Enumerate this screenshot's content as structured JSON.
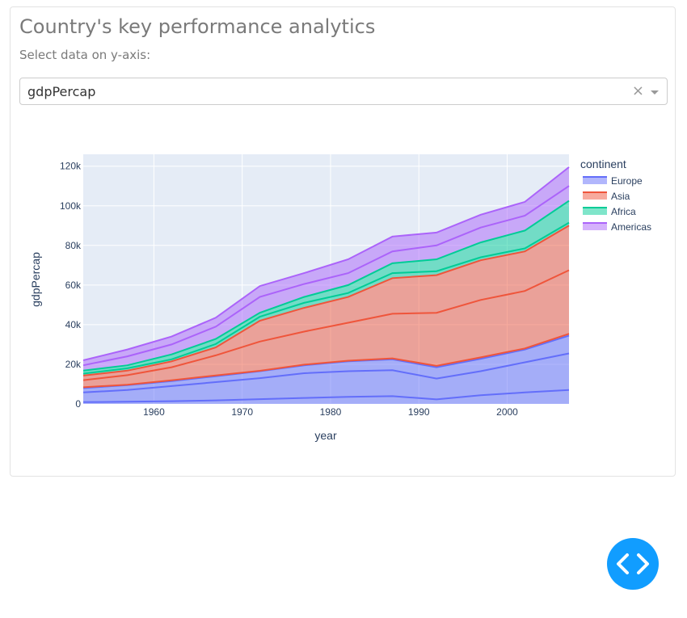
{
  "header": {
    "title": "Country's key performance analytics",
    "subtitle": "Select data on y-axis:"
  },
  "dropdown": {
    "value": "gdpPercap",
    "clear_symbol": "×"
  },
  "colors": {
    "europe": "#636efa",
    "asia": "#ef553b",
    "africa": "#00cc96",
    "americas": "#ab63fa",
    "plot_bg": "#e5ecf6",
    "fab": "#119dff"
  },
  "chart_data": {
    "type": "area",
    "xlabel": "year",
    "ylabel": "gdpPercap",
    "xlim": [
      1952,
      2007
    ],
    "ylim": [
      0,
      126000
    ],
    "x_ticks": [
      1960,
      1970,
      1980,
      1990,
      2000
    ],
    "y_ticks": [
      0,
      20000,
      40000,
      60000,
      80000,
      100000,
      120000
    ],
    "y_tick_labels": [
      "0",
      "20k",
      "40k",
      "60k",
      "80k",
      "100k",
      "120k"
    ],
    "x_tick_labels": [
      "1960",
      "1970",
      "1980",
      "1990",
      "2000"
    ],
    "legend_title": "continent",
    "legend_position": "right",
    "x": [
      1952,
      1957,
      1962,
      1967,
      1972,
      1977,
      1982,
      1987,
      1992,
      1997,
      2002,
      2007
    ],
    "series": [
      {
        "name": "Europe",
        "color_key": "europe",
        "lines": [
          [
            900,
            1100,
            1400,
            1800,
            2400,
            3000,
            3600,
            3900,
            2300,
            4400,
            5800,
            7000
          ],
          [
            5800,
            7000,
            9000,
            11000,
            13000,
            15500,
            16500,
            17000,
            12800,
            16500,
            21000,
            25500
          ],
          [
            8000,
            9500,
            11500,
            14000,
            16500,
            19500,
            21500,
            22500,
            18500,
            22800,
            27500,
            34500
          ]
        ]
      },
      {
        "name": "Asia",
        "color_key": "asia",
        "lines": [
          [
            8400,
            9700,
            11900,
            14400,
            16700,
            19800,
            21800,
            23000,
            19200,
            23500,
            28000,
            35400
          ],
          [
            12000,
            14500,
            18500,
            24500,
            31500,
            36500,
            41000,
            45500,
            46000,
            52500,
            57000,
            67500
          ],
          [
            14300,
            16800,
            21500,
            28500,
            42000,
            48500,
            54000,
            63500,
            65000,
            72500,
            77000,
            90000
          ]
        ]
      },
      {
        "name": "Africa",
        "color_key": "africa",
        "lines": [
          [
            15300,
            18000,
            22500,
            30200,
            44000,
            51000,
            56000,
            66000,
            67000,
            74000,
            78500,
            91500
          ],
          [
            16800,
            19500,
            25000,
            32800,
            46000,
            54000,
            60000,
            71000,
            73000,
            81500,
            87500,
            102500
          ]
        ]
      },
      {
        "name": "Americas",
        "color_key": "americas",
        "lines": [
          [
            19500,
            24000,
            30000,
            39000,
            54000,
            60500,
            66000,
            77000,
            80000,
            89000,
            95000,
            110000
          ],
          [
            22000,
            27500,
            34000,
            43500,
            59500,
            66000,
            73000,
            84500,
            86500,
            95500,
            102000,
            119500
          ]
        ]
      }
    ]
  }
}
